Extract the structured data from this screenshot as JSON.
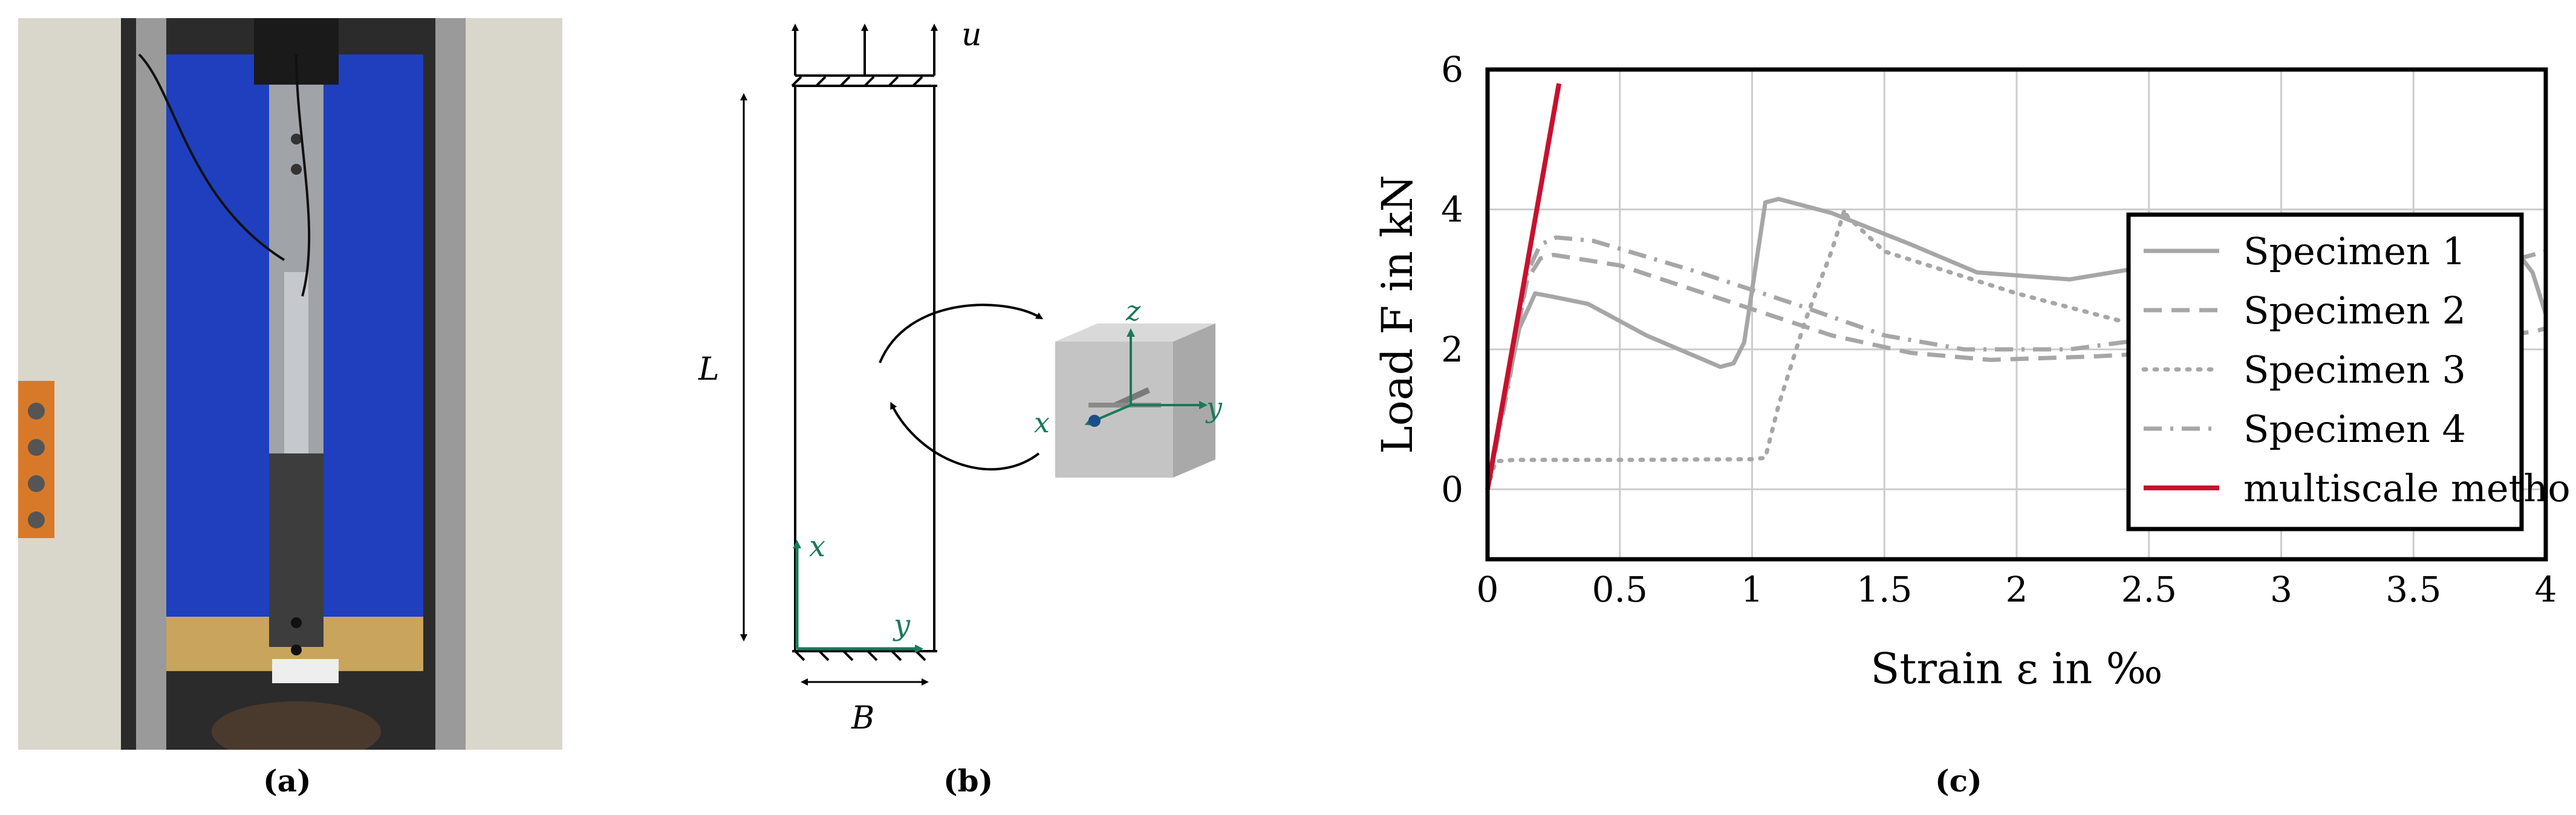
{
  "panels": {
    "a": {
      "caption": "(a)"
    },
    "b": {
      "caption": "(b)",
      "labels": {
        "load": "u",
        "length": "L",
        "width": "B",
        "axis_x": "x",
        "axis_y": "y"
      },
      "rve_labels": {
        "z": "z",
        "x": "x",
        "y": "y"
      },
      "colors": {
        "axes": "#1a7a5a",
        "rve": "#b8b8b8"
      }
    },
    "c": {
      "caption": "(c)"
    }
  },
  "chart_data": {
    "type": "line",
    "title": "",
    "xlabel": "Strain ε in ‰",
    "ylabel": "Load F in kN",
    "xlim": [
      0,
      4
    ],
    "ylim": [
      -1,
      6
    ],
    "xticks": [
      0,
      0.5,
      1,
      1.5,
      2,
      2.5,
      3,
      3.5,
      4
    ],
    "xtick_labels": [
      "0",
      "0.5",
      "1",
      "1.5",
      "2",
      "2.5",
      "3",
      "3.5",
      "4"
    ],
    "yticks": [
      0,
      2,
      4,
      6
    ],
    "ytick_labels": [
      "0",
      "2",
      "4",
      "6"
    ],
    "grid": true,
    "legend": "top-right",
    "series": [
      {
        "name": "Specimen 1",
        "color": "#a6a6a6",
        "dash": "solid",
        "x": [
          0,
          0.06,
          0.12,
          0.18,
          0.25,
          0.38,
          0.6,
          0.88,
          0.93,
          0.97,
          1.01,
          1.05,
          1.1,
          1.3,
          1.6,
          1.85,
          2.2,
          2.6,
          3.0,
          3.4,
          3.6,
          3.75,
          3.85,
          3.95,
          4.0
        ],
        "y": [
          0,
          1.2,
          2.3,
          2.8,
          2.75,
          2.65,
          2.2,
          1.75,
          1.8,
          2.1,
          3.1,
          4.1,
          4.15,
          3.95,
          3.5,
          3.1,
          3.0,
          3.25,
          3.6,
          3.8,
          3.85,
          3.9,
          3.6,
          3.1,
          2.5
        ]
      },
      {
        "name": "Specimen 2",
        "color": "#a6a6a6",
        "dash": "dashed",
        "x": [
          0,
          0.08,
          0.15,
          0.2,
          0.25,
          0.5,
          0.9,
          1.3,
          1.6,
          1.9,
          2.3,
          2.8,
          3.3,
          3.7,
          3.95,
          4.0
        ],
        "y": [
          0,
          1.6,
          3.0,
          3.3,
          3.35,
          3.2,
          2.7,
          2.2,
          1.95,
          1.85,
          1.9,
          2.0,
          2.1,
          2.15,
          2.25,
          2.3
        ]
      },
      {
        "name": "Specimen 3",
        "color": "#a6a6a6",
        "dash": "dotted",
        "x": [
          0,
          0.03,
          0.1,
          0.5,
          1.0,
          1.05,
          1.1,
          1.2,
          1.3,
          1.35,
          1.36,
          1.5,
          2.0,
          2.4
        ],
        "y": [
          0,
          0.4,
          0.42,
          0.42,
          0.43,
          0.45,
          1.2,
          2.4,
          3.4,
          4.0,
          3.9,
          3.4,
          2.8,
          2.4
        ]
      },
      {
        "name": "Specimen 4",
        "color": "#a6a6a6",
        "dash": "dashdot",
        "x": [
          0,
          0.08,
          0.15,
          0.2,
          0.26,
          0.4,
          0.8,
          1.2,
          1.5,
          1.8,
          2.2,
          2.8,
          3.3,
          3.8,
          4.0
        ],
        "y": [
          0,
          1.5,
          3.1,
          3.5,
          3.6,
          3.55,
          3.1,
          2.6,
          2.2,
          2.0,
          2.0,
          2.3,
          2.6,
          3.2,
          3.4
        ]
      },
      {
        "name": "multiscale method",
        "color": "#c8102e",
        "dash": "solid",
        "x": [
          0,
          0.27
        ],
        "y": [
          0,
          5.8
        ]
      }
    ]
  }
}
